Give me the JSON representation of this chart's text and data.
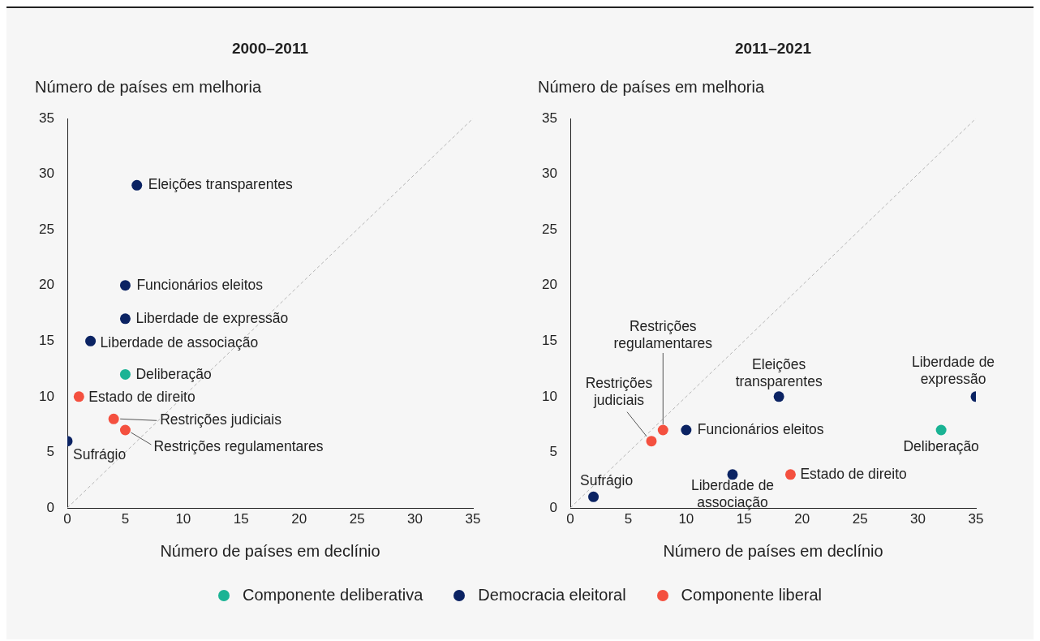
{
  "chart_data": [
    {
      "type": "scatter",
      "title": "2000–2011",
      "xlabel": "Número de países em declínio",
      "ylabel": "Número de países em melhoria",
      "xlim": [
        0,
        35
      ],
      "ylim": [
        0,
        35
      ],
      "xticks": [
        0,
        5,
        10,
        15,
        20,
        25,
        30,
        35
      ],
      "yticks": [
        0,
        5,
        10,
        15,
        20,
        25,
        30,
        35
      ],
      "grid": false,
      "legend": "bottom",
      "marker": "circle",
      "series": [
        {
          "name": "Componente deliberativa",
          "color": "#1ab394",
          "x": [
            5
          ],
          "values": [
            12
          ]
        },
        {
          "name": "Democracia eleitoral",
          "color": "#0b2363",
          "x": [
            6,
            5,
            5,
            2,
            0
          ],
          "values": [
            29,
            20,
            17,
            15,
            6
          ]
        },
        {
          "name": "Componente liberal",
          "color": "#f4503f",
          "x": [
            1,
            4,
            5
          ],
          "values": [
            10,
            8,
            7
          ]
        },
        {
          "type": "line",
          "color": "#b5b5b5",
          "line_style": "dashed",
          "marker": "none",
          "x": [
            0,
            35
          ],
          "values": [
            0,
            35
          ]
        }
      ],
      "annotations": [
        {
          "text": "Eleições transparentes",
          "x": 6,
          "y": 29
        },
        {
          "text": "Funcionários eleitos",
          "x": 5,
          "y": 20
        },
        {
          "text": "Liberdade de expressão",
          "x": 5,
          "y": 17
        },
        {
          "text": "Liberdade de associação",
          "x": 2,
          "y": 15
        },
        {
          "text": "Deliberação",
          "x": 5,
          "y": 12
        },
        {
          "text": "Estado de direito",
          "x": 1,
          "y": 10
        },
        {
          "text": "Restrições judiciais",
          "x": 4,
          "y": 8
        },
        {
          "text": "Restrições regulamentares",
          "x": 5,
          "y": 7
        },
        {
          "text": "Sufrágio",
          "x": 0,
          "y": 6
        }
      ]
    },
    {
      "type": "scatter",
      "title": "2011–2021",
      "xlabel": "Número de países em declínio",
      "ylabel": "Número de países em melhoria",
      "xlim": [
        0,
        35
      ],
      "ylim": [
        0,
        35
      ],
      "xticks": [
        0,
        5,
        10,
        15,
        20,
        25,
        30,
        35
      ],
      "yticks": [
        0,
        5,
        10,
        15,
        20,
        25,
        30,
        35
      ],
      "grid": false,
      "marker": "circle",
      "series": [
        {
          "color": "#1ab394",
          "x": [
            32
          ],
          "values": [
            7
          ]
        },
        {
          "color": "#0b2363",
          "x": [
            2,
            10,
            14,
            18,
            35
          ],
          "values": [
            1,
            7,
            3,
            10,
            10
          ]
        },
        {
          "color": "#f4503f",
          "x": [
            7,
            8,
            19
          ],
          "values": [
            6,
            7,
            3
          ]
        },
        {
          "type": "line",
          "color": "#b5b5b5",
          "line_style": "dashed",
          "marker": "none",
          "x": [
            0,
            35
          ],
          "values": [
            0,
            35
          ]
        }
      ],
      "annotations": [
        {
          "text": "Sufrágio",
          "x": 2,
          "y": 1
        },
        {
          "text": "Restrições\njudiciais",
          "x": 7,
          "y": 6
        },
        {
          "text": "Restrições\nregulamentares",
          "x": 8,
          "y": 7
        },
        {
          "text": "Funcionários eleitos",
          "x": 10,
          "y": 7
        },
        {
          "text": "Liberdade de\nassociação",
          "x": 14,
          "y": 3
        },
        {
          "text": "Estado de direito",
          "x": 19,
          "y": 3
        },
        {
          "text": "Eleições\ntransparentes",
          "x": 18,
          "y": 10
        },
        {
          "text": "Deliberação",
          "x": 32,
          "y": 7
        },
        {
          "text": "Liberdade de\nexpressão",
          "x": 35,
          "y": 10
        }
      ]
    }
  ]
}
